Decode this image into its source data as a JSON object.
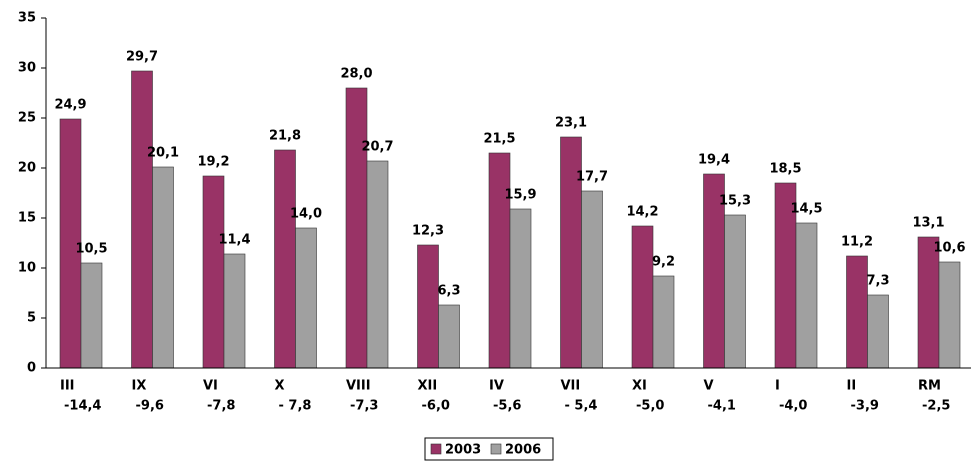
{
  "chart_data": {
    "type": "bar",
    "categories": [
      "III",
      "IX",
      "VI",
      "X",
      "VIII",
      "XII",
      "IV",
      "VII",
      "XI",
      "V",
      "I",
      "II",
      "RM"
    ],
    "category_notes": [
      "-14,4",
      "-9,6",
      "-7,8",
      "- 7,8",
      "-7,3",
      "-6,0",
      "-5,6",
      "- 5,4",
      "-5,0",
      "-4,1",
      "-4,0",
      "-3,9",
      "-2,5"
    ],
    "series": [
      {
        "name": "2003",
        "color": "#993366",
        "values": [
          24.9,
          29.7,
          19.2,
          21.8,
          28.0,
          12.3,
          21.5,
          23.1,
          14.2,
          19.4,
          18.5,
          11.2,
          13.1
        ],
        "value_labels": [
          "24,9",
          "29,7",
          "19,2",
          "21,8",
          "28,0",
          "12,3",
          "21,5",
          "23,1",
          "14,2",
          "19,4",
          "18,5",
          "11,2",
          "13,1"
        ]
      },
      {
        "name": "2006",
        "color": "#a0a0a0",
        "values": [
          10.5,
          20.1,
          11.4,
          14.0,
          20.7,
          6.3,
          15.9,
          17.7,
          9.2,
          15.3,
          14.5,
          7.3,
          10.6
        ],
        "value_labels": [
          "10,5",
          "20,1",
          "11,4",
          "14,0",
          "20,7",
          "6,3",
          "15,9",
          "17,7",
          "9,2",
          "15,3",
          "14,5",
          "7,3",
          "10,6"
        ]
      }
    ],
    "ylim": [
      0,
      35
    ],
    "yticks": [
      0,
      5,
      10,
      15,
      20,
      25,
      30,
      35
    ],
    "grid": false,
    "legend": "bottom"
  }
}
